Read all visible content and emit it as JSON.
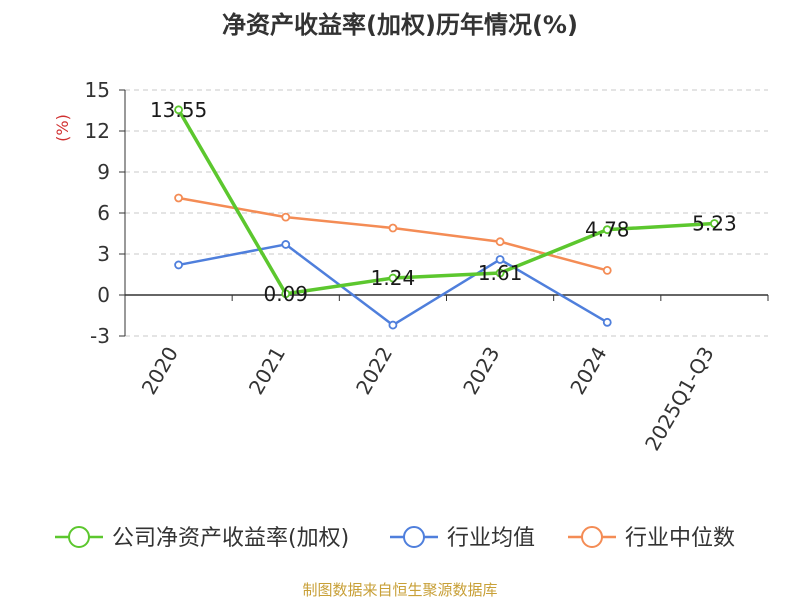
{
  "chart_data": {
    "type": "line",
    "title": "净资产收益率(加权)历年情况(%)",
    "ylabel": "(%)",
    "xlabel": "",
    "categories": [
      "2020",
      "2021",
      "2022",
      "2023",
      "2024",
      "2025Q1-Q3"
    ],
    "ylim": [
      -3,
      15
    ],
    "yticks": [
      15,
      12,
      9,
      6,
      3,
      0,
      -3
    ],
    "grid": true,
    "legend_position": "bottom",
    "series": [
      {
        "name": "公司净资产收益率(加权)",
        "color": "#5cc72e",
        "values": [
          13.55,
          0.09,
          1.24,
          1.61,
          4.78,
          5.23
        ],
        "labels": [
          "13.55",
          "0.09",
          "1.24",
          "1.61",
          "4.78",
          "5.23"
        ]
      },
      {
        "name": "行业均值",
        "color": "#4f7fdc",
        "values": [
          2.2,
          3.7,
          -2.2,
          2.6,
          -2.0,
          null
        ]
      },
      {
        "name": "行业中位数",
        "color": "#f48c55",
        "values": [
          7.1,
          5.7,
          4.9,
          3.9,
          1.8,
          null
        ]
      }
    ],
    "source": "制图数据来自恒生聚源数据库",
    "source_color": "#c8a038",
    "unit_color": "#d03030"
  }
}
